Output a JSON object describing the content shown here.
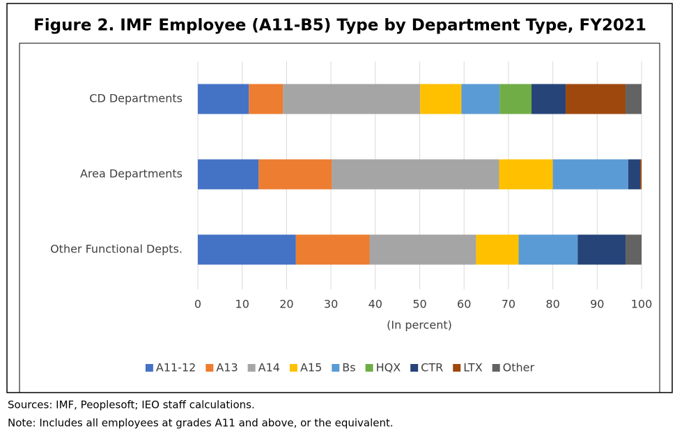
{
  "chart_data": {
    "type": "stacked-barh",
    "title": "Figure 2. IMF Employee (A11-B5) Type by Department Type, FY2021",
    "xlabel": "(In percent)",
    "categories": [
      "CD Departments",
      "Area Departments",
      "Other Functional Depts."
    ],
    "series": [
      {
        "name": "A11-12",
        "color": "#4472c4",
        "values": [
          11.5,
          13.7,
          22.1
        ]
      },
      {
        "name": "A13",
        "color": "#ed7d31",
        "values": [
          7.7,
          16.5,
          16.6
        ]
      },
      {
        "name": "A14",
        "color": "#a5a5a5",
        "values": [
          30.9,
          37.7,
          24.0
        ]
      },
      {
        "name": "A15",
        "color": "#ffc000",
        "values": [
          9.3,
          12.1,
          9.6
        ]
      },
      {
        "name": "Bs",
        "color": "#5b9bd5",
        "values": [
          8.6,
          17.0,
          13.3
        ]
      },
      {
        "name": "HQX",
        "color": "#70ad47",
        "values": [
          7.2,
          0,
          0
        ]
      },
      {
        "name": "CTR",
        "color": "#264478",
        "values": [
          7.7,
          2.7,
          10.8
        ]
      },
      {
        "name": "LTX",
        "color": "#9e480e",
        "values": [
          13.5,
          0.3,
          0
        ]
      },
      {
        "name": "Other",
        "color": "#636363",
        "values": [
          3.6,
          0,
          3.6
        ]
      }
    ],
    "xlim": [
      0,
      100
    ],
    "xticks": [
      0,
      10,
      20,
      30,
      40,
      50,
      60,
      70,
      80,
      90,
      100
    ],
    "grid": true,
    "legend": "bottom"
  },
  "footer": [
    "Sources: IMF, Peoplesoft; IEO staff calculations.",
    "Note: Includes all employees at grades A11 and above, or the equivalent."
  ]
}
